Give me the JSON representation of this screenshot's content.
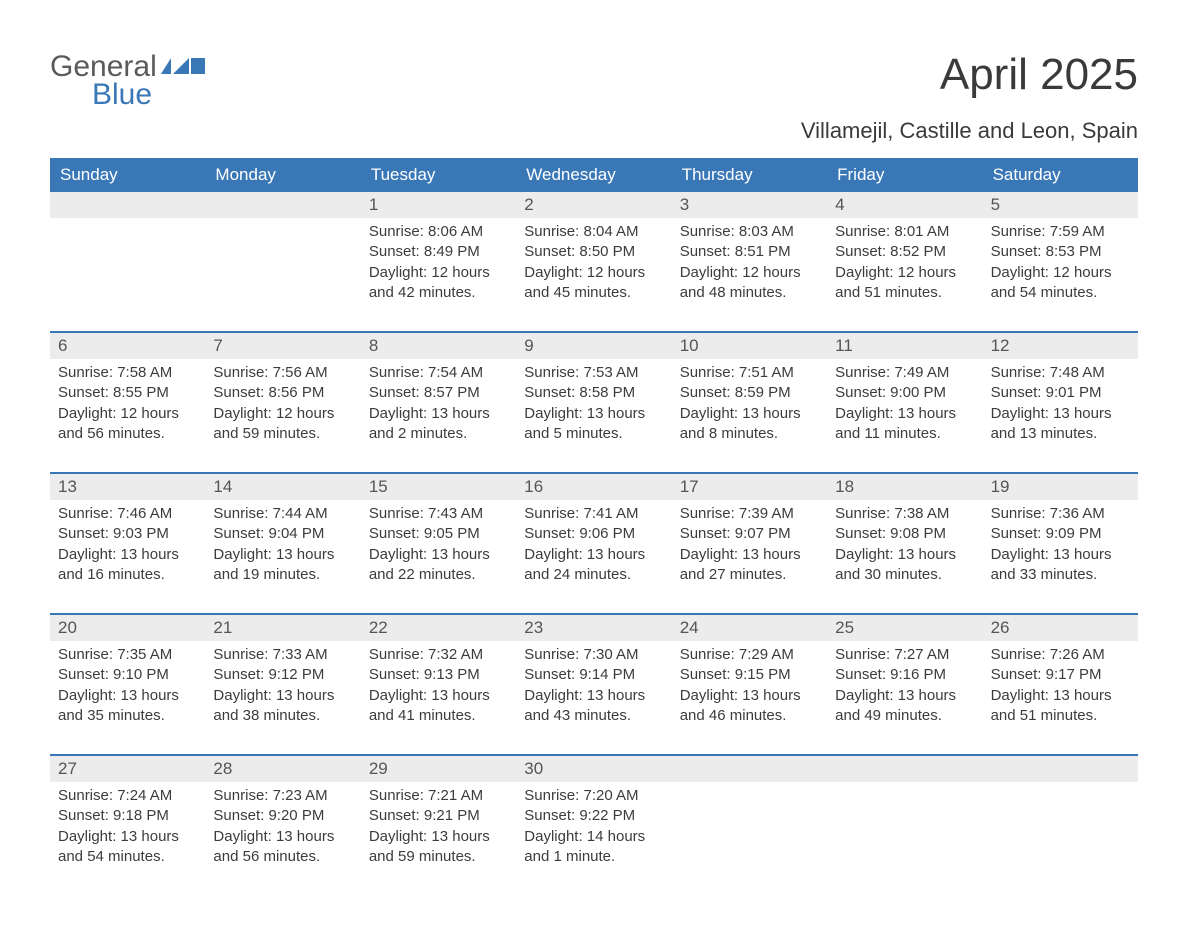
{
  "logo": {
    "part1": "General",
    "part2": "Blue"
  },
  "title": "April 2025",
  "subtitle": "Villamejil, Castille and Leon, Spain",
  "colors": {
    "header_bg": "#3a77b7",
    "header_text": "#ffffff",
    "daynum_bg": "#ececec",
    "week_border": "#3a77b7",
    "body_text": "#3a3a3a",
    "logo_gray": "#5a5a5a",
    "logo_blue": "#3a77b7",
    "page_bg": "#ffffff"
  },
  "day_headers": [
    "Sunday",
    "Monday",
    "Tuesday",
    "Wednesday",
    "Thursday",
    "Friday",
    "Saturday"
  ],
  "weeks": [
    [
      {
        "num": "",
        "sunrise": "",
        "sunset": "",
        "day1": "",
        "day2": ""
      },
      {
        "num": "",
        "sunrise": "",
        "sunset": "",
        "day1": "",
        "day2": ""
      },
      {
        "num": "1",
        "sunrise": "Sunrise: 8:06 AM",
        "sunset": "Sunset: 8:49 PM",
        "day1": "Daylight: 12 hours",
        "day2": "and 42 minutes."
      },
      {
        "num": "2",
        "sunrise": "Sunrise: 8:04 AM",
        "sunset": "Sunset: 8:50 PM",
        "day1": "Daylight: 12 hours",
        "day2": "and 45 minutes."
      },
      {
        "num": "3",
        "sunrise": "Sunrise: 8:03 AM",
        "sunset": "Sunset: 8:51 PM",
        "day1": "Daylight: 12 hours",
        "day2": "and 48 minutes."
      },
      {
        "num": "4",
        "sunrise": "Sunrise: 8:01 AM",
        "sunset": "Sunset: 8:52 PM",
        "day1": "Daylight: 12 hours",
        "day2": "and 51 minutes."
      },
      {
        "num": "5",
        "sunrise": "Sunrise: 7:59 AM",
        "sunset": "Sunset: 8:53 PM",
        "day1": "Daylight: 12 hours",
        "day2": "and 54 minutes."
      }
    ],
    [
      {
        "num": "6",
        "sunrise": "Sunrise: 7:58 AM",
        "sunset": "Sunset: 8:55 PM",
        "day1": "Daylight: 12 hours",
        "day2": "and 56 minutes."
      },
      {
        "num": "7",
        "sunrise": "Sunrise: 7:56 AM",
        "sunset": "Sunset: 8:56 PM",
        "day1": "Daylight: 12 hours",
        "day2": "and 59 minutes."
      },
      {
        "num": "8",
        "sunrise": "Sunrise: 7:54 AM",
        "sunset": "Sunset: 8:57 PM",
        "day1": "Daylight: 13 hours",
        "day2": "and 2 minutes."
      },
      {
        "num": "9",
        "sunrise": "Sunrise: 7:53 AM",
        "sunset": "Sunset: 8:58 PM",
        "day1": "Daylight: 13 hours",
        "day2": "and 5 minutes."
      },
      {
        "num": "10",
        "sunrise": "Sunrise: 7:51 AM",
        "sunset": "Sunset: 8:59 PM",
        "day1": "Daylight: 13 hours",
        "day2": "and 8 minutes."
      },
      {
        "num": "11",
        "sunrise": "Sunrise: 7:49 AM",
        "sunset": "Sunset: 9:00 PM",
        "day1": "Daylight: 13 hours",
        "day2": "and 11 minutes."
      },
      {
        "num": "12",
        "sunrise": "Sunrise: 7:48 AM",
        "sunset": "Sunset: 9:01 PM",
        "day1": "Daylight: 13 hours",
        "day2": "and 13 minutes."
      }
    ],
    [
      {
        "num": "13",
        "sunrise": "Sunrise: 7:46 AM",
        "sunset": "Sunset: 9:03 PM",
        "day1": "Daylight: 13 hours",
        "day2": "and 16 minutes."
      },
      {
        "num": "14",
        "sunrise": "Sunrise: 7:44 AM",
        "sunset": "Sunset: 9:04 PM",
        "day1": "Daylight: 13 hours",
        "day2": "and 19 minutes."
      },
      {
        "num": "15",
        "sunrise": "Sunrise: 7:43 AM",
        "sunset": "Sunset: 9:05 PM",
        "day1": "Daylight: 13 hours",
        "day2": "and 22 minutes."
      },
      {
        "num": "16",
        "sunrise": "Sunrise: 7:41 AM",
        "sunset": "Sunset: 9:06 PM",
        "day1": "Daylight: 13 hours",
        "day2": "and 24 minutes."
      },
      {
        "num": "17",
        "sunrise": "Sunrise: 7:39 AM",
        "sunset": "Sunset: 9:07 PM",
        "day1": "Daylight: 13 hours",
        "day2": "and 27 minutes."
      },
      {
        "num": "18",
        "sunrise": "Sunrise: 7:38 AM",
        "sunset": "Sunset: 9:08 PM",
        "day1": "Daylight: 13 hours",
        "day2": "and 30 minutes."
      },
      {
        "num": "19",
        "sunrise": "Sunrise: 7:36 AM",
        "sunset": "Sunset: 9:09 PM",
        "day1": "Daylight: 13 hours",
        "day2": "and 33 minutes."
      }
    ],
    [
      {
        "num": "20",
        "sunrise": "Sunrise: 7:35 AM",
        "sunset": "Sunset: 9:10 PM",
        "day1": "Daylight: 13 hours",
        "day2": "and 35 minutes."
      },
      {
        "num": "21",
        "sunrise": "Sunrise: 7:33 AM",
        "sunset": "Sunset: 9:12 PM",
        "day1": "Daylight: 13 hours",
        "day2": "and 38 minutes."
      },
      {
        "num": "22",
        "sunrise": "Sunrise: 7:32 AM",
        "sunset": "Sunset: 9:13 PM",
        "day1": "Daylight: 13 hours",
        "day2": "and 41 minutes."
      },
      {
        "num": "23",
        "sunrise": "Sunrise: 7:30 AM",
        "sunset": "Sunset: 9:14 PM",
        "day1": "Daylight: 13 hours",
        "day2": "and 43 minutes."
      },
      {
        "num": "24",
        "sunrise": "Sunrise: 7:29 AM",
        "sunset": "Sunset: 9:15 PM",
        "day1": "Daylight: 13 hours",
        "day2": "and 46 minutes."
      },
      {
        "num": "25",
        "sunrise": "Sunrise: 7:27 AM",
        "sunset": "Sunset: 9:16 PM",
        "day1": "Daylight: 13 hours",
        "day2": "and 49 minutes."
      },
      {
        "num": "26",
        "sunrise": "Sunrise: 7:26 AM",
        "sunset": "Sunset: 9:17 PM",
        "day1": "Daylight: 13 hours",
        "day2": "and 51 minutes."
      }
    ],
    [
      {
        "num": "27",
        "sunrise": "Sunrise: 7:24 AM",
        "sunset": "Sunset: 9:18 PM",
        "day1": "Daylight: 13 hours",
        "day2": "and 54 minutes."
      },
      {
        "num": "28",
        "sunrise": "Sunrise: 7:23 AM",
        "sunset": "Sunset: 9:20 PM",
        "day1": "Daylight: 13 hours",
        "day2": "and 56 minutes."
      },
      {
        "num": "29",
        "sunrise": "Sunrise: 7:21 AM",
        "sunset": "Sunset: 9:21 PM",
        "day1": "Daylight: 13 hours",
        "day2": "and 59 minutes."
      },
      {
        "num": "30",
        "sunrise": "Sunrise: 7:20 AM",
        "sunset": "Sunset: 9:22 PM",
        "day1": "Daylight: 14 hours",
        "day2": "and 1 minute."
      },
      {
        "num": "",
        "sunrise": "",
        "sunset": "",
        "day1": "",
        "day2": ""
      },
      {
        "num": "",
        "sunrise": "",
        "sunset": "",
        "day1": "",
        "day2": ""
      },
      {
        "num": "",
        "sunrise": "",
        "sunset": "",
        "day1": "",
        "day2": ""
      }
    ]
  ]
}
